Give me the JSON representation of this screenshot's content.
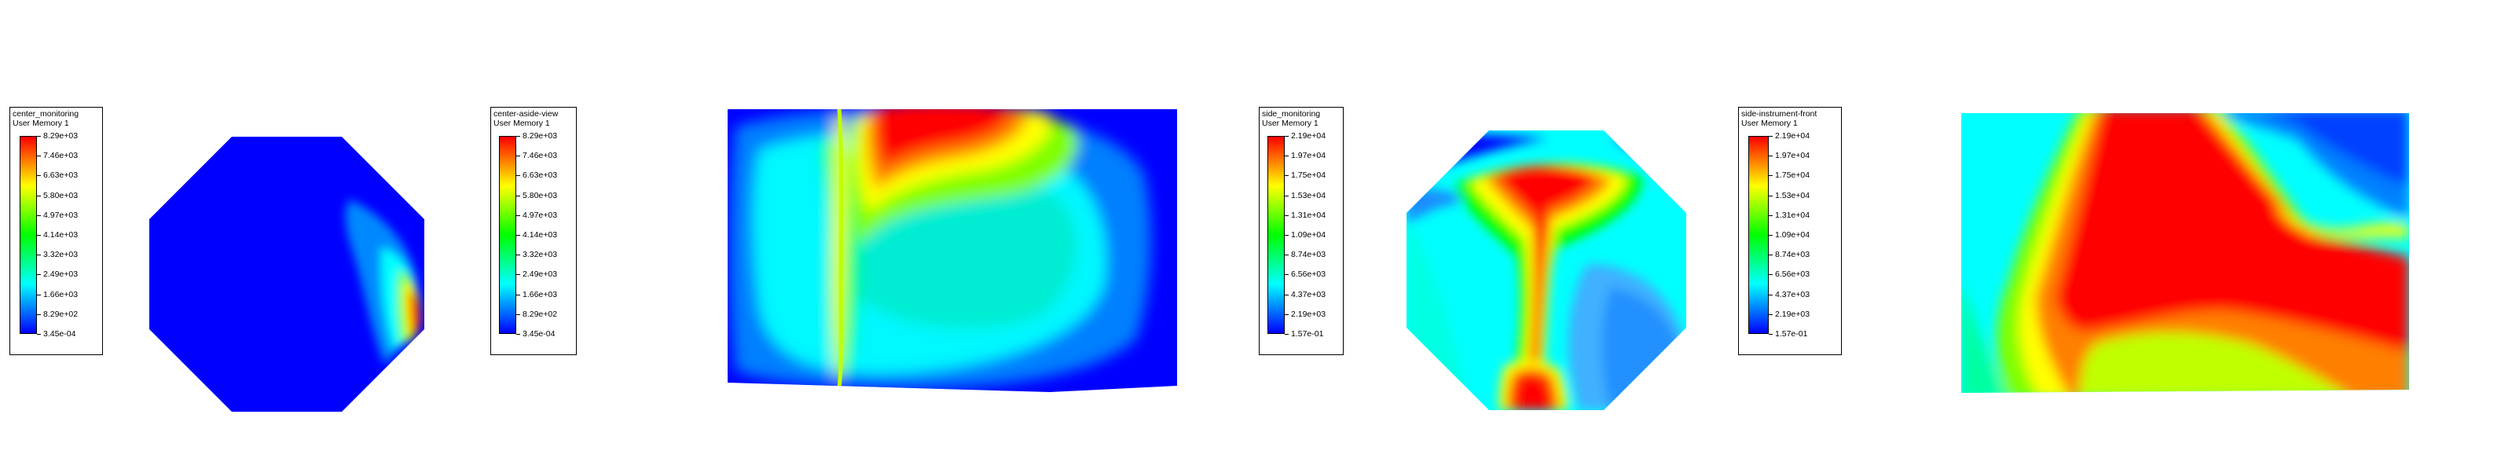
{
  "legends": [
    {
      "title": "center_monitoring",
      "subtitle": "User Memory 1",
      "ticks": [
        "8.29e+03",
        "7.46e+03",
        "6.63e+03",
        "5.80e+03",
        "4.97e+03",
        "4.14e+03",
        "3.32e+03",
        "2.49e+03",
        "1.66e+03",
        "8.29e+02",
        "3.45e-04"
      ]
    },
    {
      "title": "center-aside-view",
      "subtitle": "User Memory 1",
      "ticks": [
        "8.29e+03",
        "7.46e+03",
        "6.63e+03",
        "5.80e+03",
        "4.97e+03",
        "4.14e+03",
        "3.32e+03",
        "2.49e+03",
        "1.66e+03",
        "8.29e+02",
        "3.45e-04"
      ]
    },
    {
      "title": "side_monitoring",
      "subtitle": "User Memory 1",
      "ticks": [
        "2.19e+04",
        "1.97e+04",
        "1.75e+04",
        "1.53e+04",
        "1.31e+04",
        "1.09e+04",
        "8.74e+03",
        "6.56e+03",
        "4.37e+03",
        "2.19e+03",
        "1.57e-01"
      ]
    },
    {
      "title": "side-instrument-front",
      "subtitle": "User Memory 1",
      "ticks": [
        "2.19e+04",
        "1.97e+04",
        "1.75e+04",
        "1.53e+04",
        "1.31e+04",
        "1.09e+04",
        "8.74e+03",
        "6.56e+03",
        "4.37e+03",
        "2.19e+03",
        "1.57e-01"
      ]
    }
  ],
  "colormap": [
    "#ff0000",
    "#ff7f00",
    "#ffff00",
    "#7fff00",
    "#00ff00",
    "#00ff7f",
    "#00ffff",
    "#007fff",
    "#0000ff"
  ]
}
